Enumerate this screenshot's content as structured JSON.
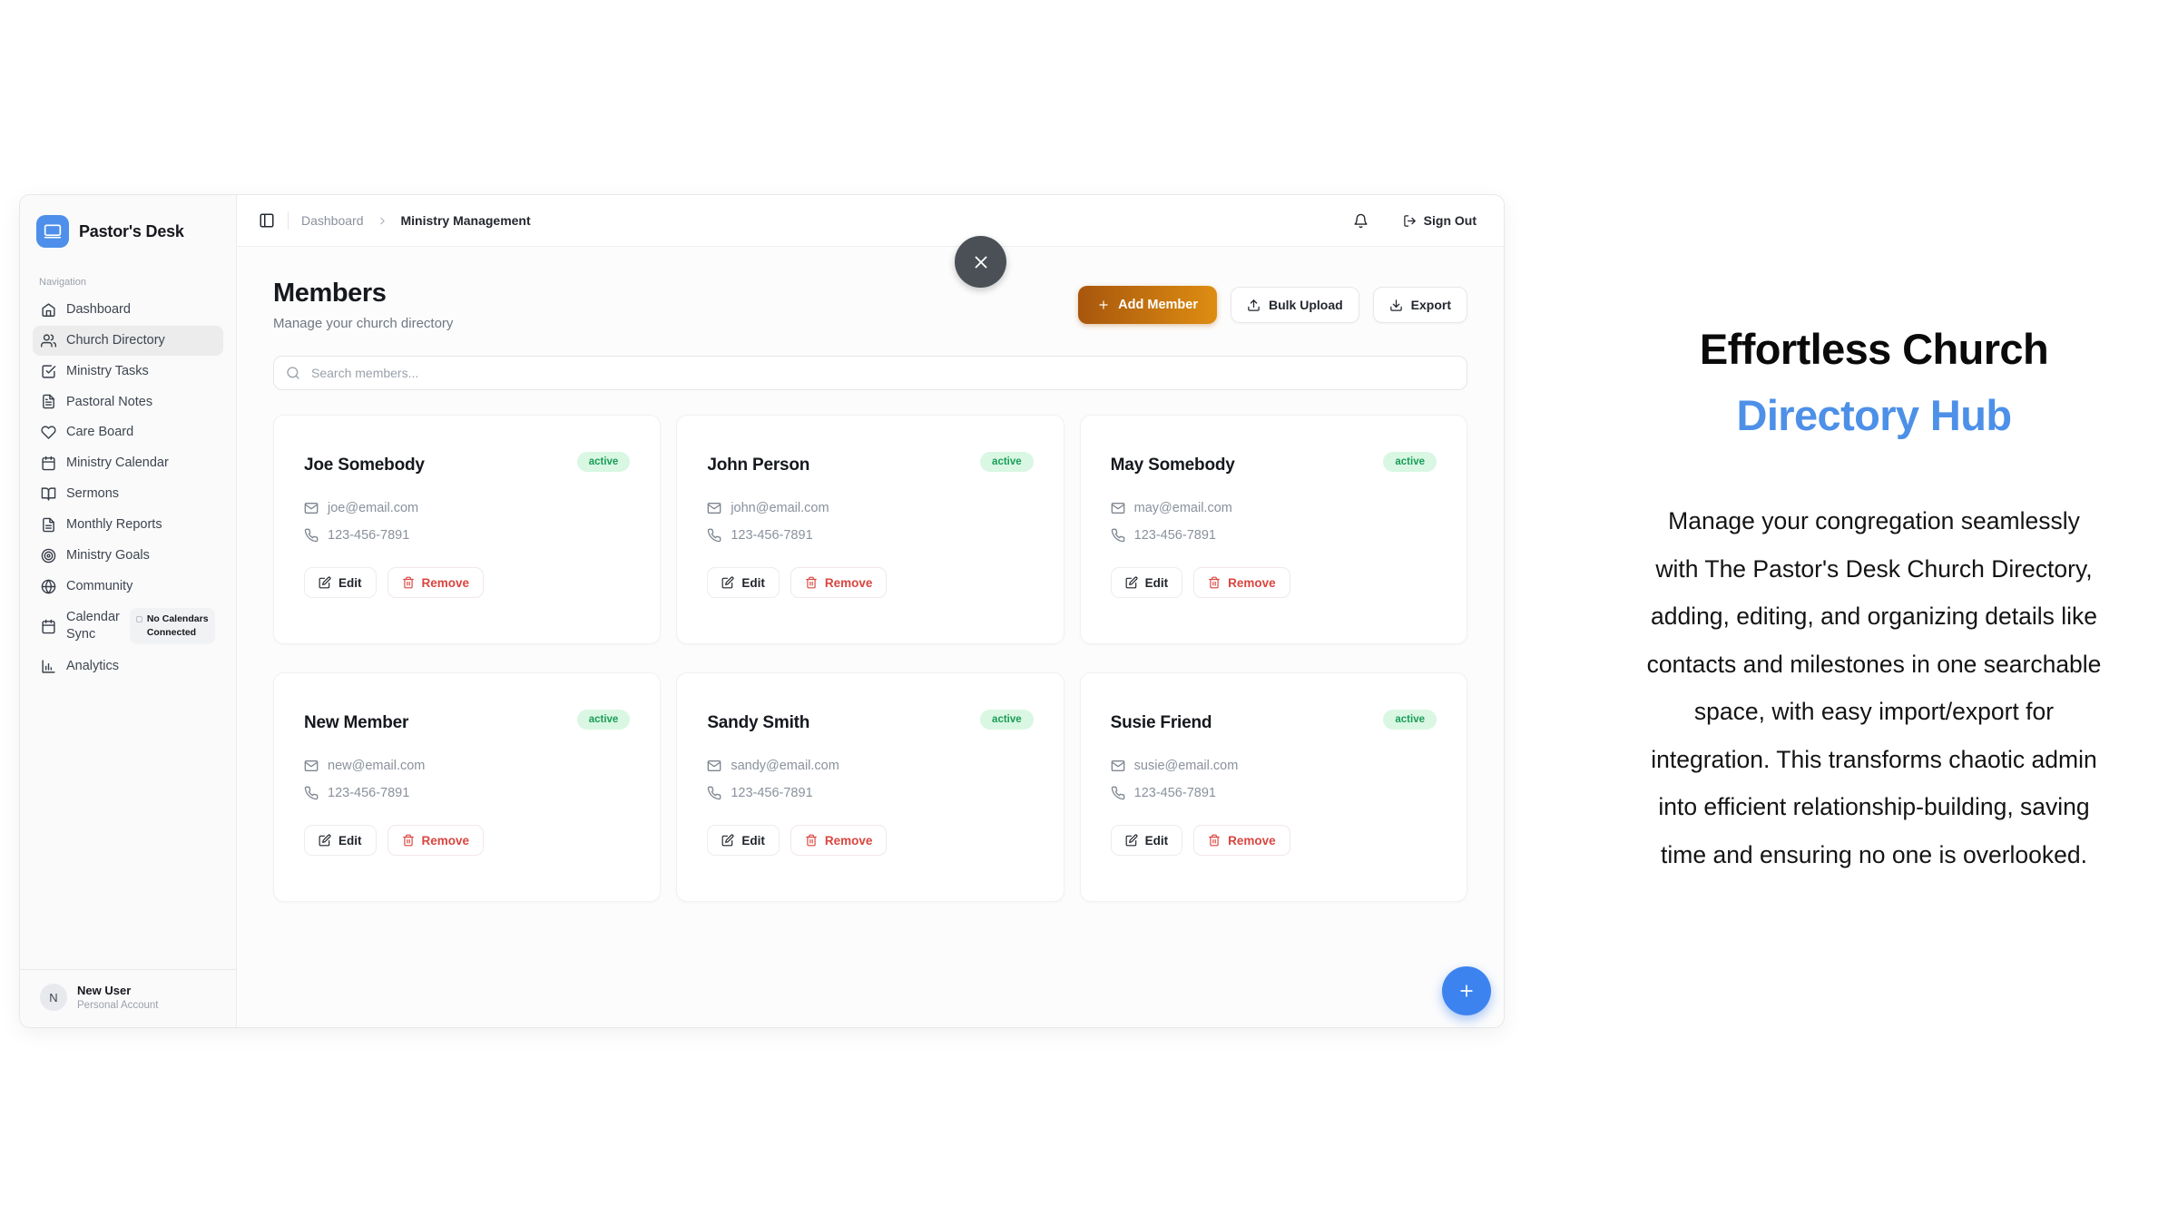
{
  "app": {
    "brand": {
      "name": "Pastor's Desk",
      "logo_icon": "laptop-icon"
    },
    "sidebar": {
      "section_label": "Navigation",
      "items": [
        {
          "label": "Dashboard",
          "icon": "home-icon",
          "active": false
        },
        {
          "label": "Church Directory",
          "icon": "users-icon",
          "active": true
        },
        {
          "label": "Ministry Tasks",
          "icon": "checklist-icon",
          "active": false
        },
        {
          "label": "Pastoral Notes",
          "icon": "note-icon",
          "active": false
        },
        {
          "label": "Care Board",
          "icon": "heart-icon",
          "active": false
        },
        {
          "label": "Ministry Calendar",
          "icon": "calendar-icon",
          "active": false
        },
        {
          "label": "Sermons",
          "icon": "book-icon",
          "active": false
        },
        {
          "label": "Monthly Reports",
          "icon": "report-icon",
          "active": false
        },
        {
          "label": "Ministry Goals",
          "icon": "target-icon",
          "active": false
        },
        {
          "label": "Community",
          "icon": "globe-icon",
          "active": false
        },
        {
          "label": "Calendar Sync",
          "icon": "calendar-icon",
          "active": false,
          "badge": "No Calendars Connected"
        },
        {
          "label": "Analytics",
          "icon": "bar-chart-icon",
          "active": false
        }
      ],
      "user": {
        "initial": "N",
        "name": "New User",
        "account_type": "Personal Account"
      }
    },
    "topbar": {
      "breadcrumb": {
        "parent": "Dashboard",
        "current": "Ministry Management"
      },
      "sign_out_label": "Sign Out"
    },
    "members": {
      "title": "Members",
      "subtitle": "Manage your church directory",
      "add_member_label": "Add Member",
      "bulk_upload_label": "Bulk Upload",
      "export_label": "Export",
      "search_placeholder": "Search members...",
      "card_actions": {
        "edit": "Edit",
        "remove": "Remove"
      },
      "cards": [
        {
          "name": "Joe Somebody",
          "status": "active",
          "email": "joe@email.com",
          "phone": "123-456-7891"
        },
        {
          "name": "John Person",
          "status": "active",
          "email": "john@email.com",
          "phone": "123-456-7891"
        },
        {
          "name": "May Somebody",
          "status": "active",
          "email": "may@email.com",
          "phone": "123-456-7891"
        },
        {
          "name": "New Member",
          "status": "active",
          "email": "new@email.com",
          "phone": "123-456-7891"
        },
        {
          "name": "Sandy Smith",
          "status": "active",
          "email": "sandy@email.com",
          "phone": "123-456-7891"
        },
        {
          "name": "Susie Friend",
          "status": "active",
          "email": "susie@email.com",
          "phone": "123-456-7891"
        }
      ]
    }
  },
  "promo": {
    "title_line1": "Effortless Church",
    "title_line2": "Directory Hub",
    "paragraph_lines": [
      "Manage your congregation seamlessly",
      "with The Pastor's Desk Church Directory,",
      "adding, editing, and organizing details like",
      "contacts and milestones in one searchable",
      "space, with easy import/export for",
      "integration. This transforms chaotic admin",
      "into efficient relationship-building, saving",
      "time and ensuring no one is overlooked."
    ]
  },
  "colors": {
    "brand_blue": "#4d8fea",
    "title_blue": "#4d90e8",
    "fab_blue": "#3d83f0",
    "accent_orange_start": "#a8560d",
    "accent_orange_end": "#de8d12",
    "active_badge_bg": "#d9f7e3",
    "active_badge_text": "#199d57",
    "danger": "#d9453f"
  }
}
